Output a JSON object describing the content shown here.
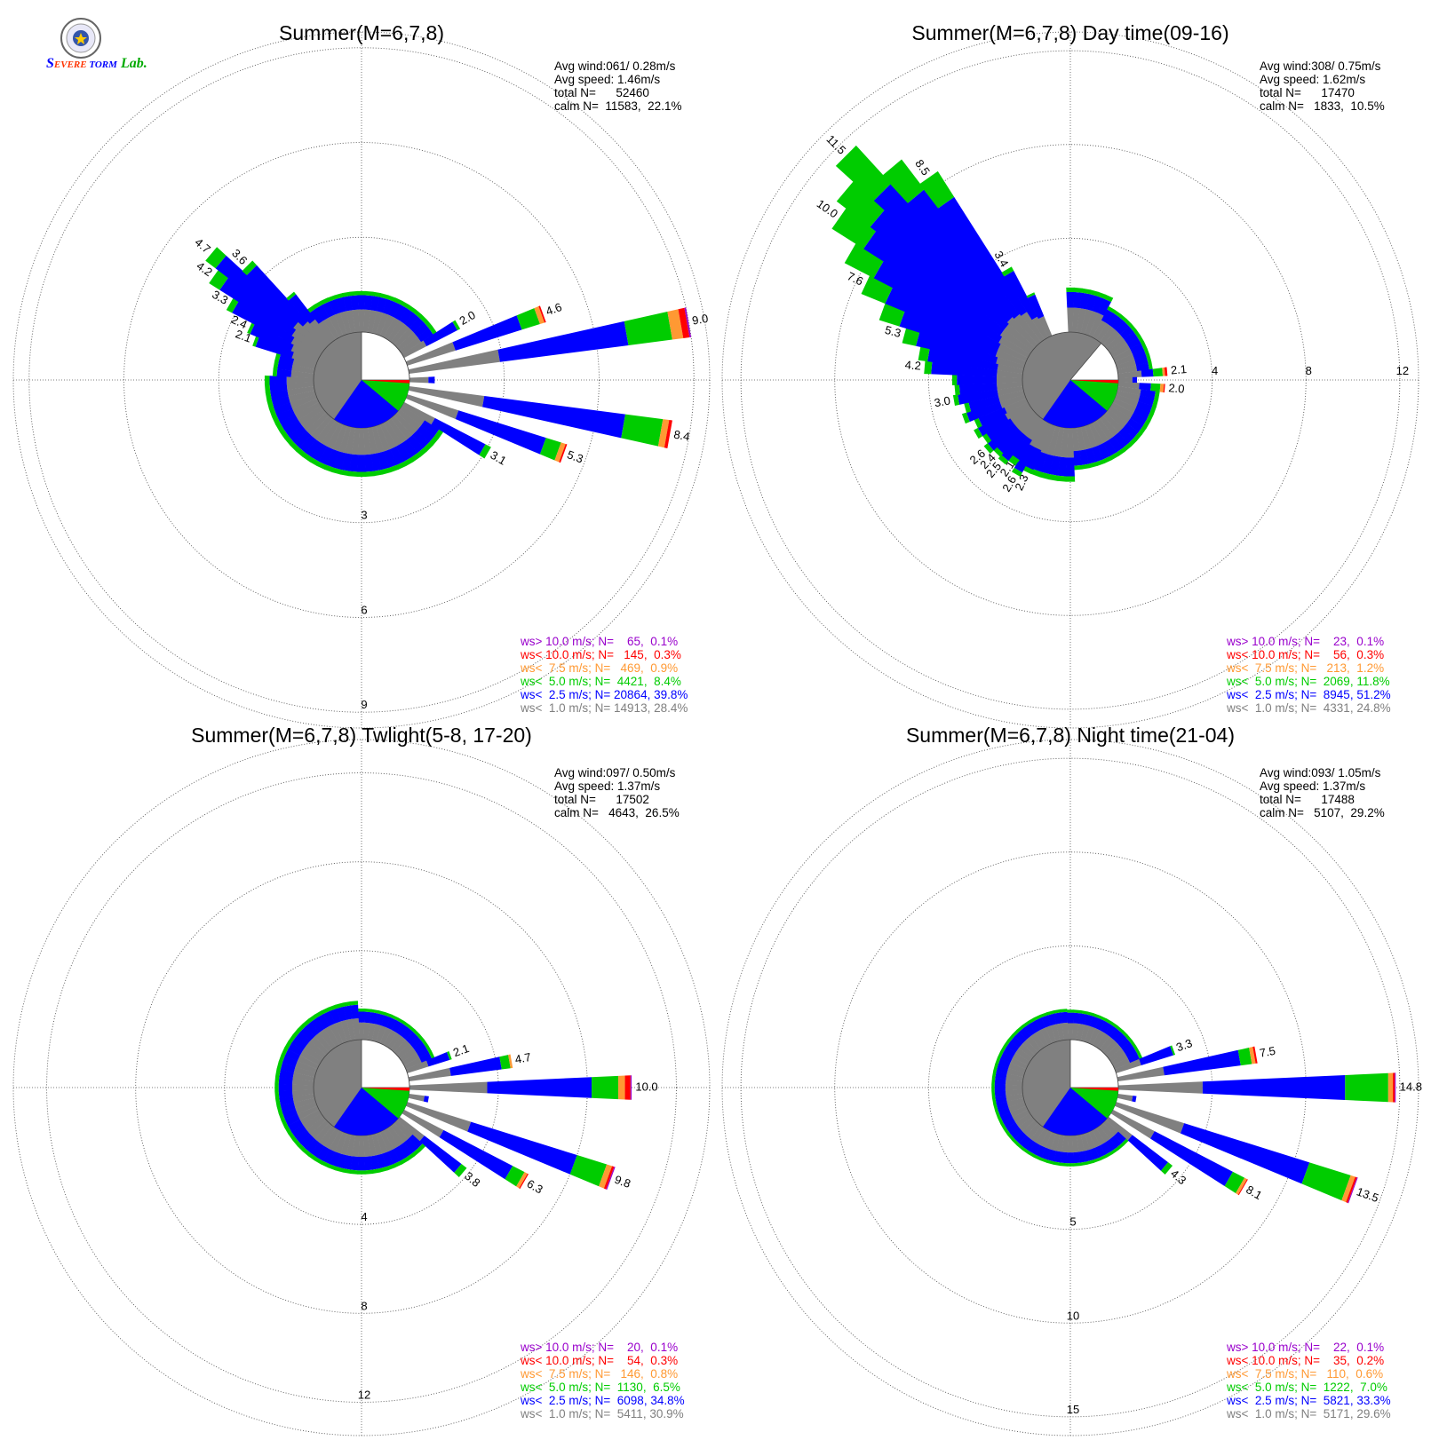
{
  "logo": {
    "text": "SEVERE STORM Lab."
  },
  "colors": {
    "calm": "#808080",
    "b1": "#808080",
    "b2": "#0000ff",
    "b3": "#00cc00",
    "b4": "#ff9933",
    "b5": "#ff0000",
    "b6": "#9900cc",
    "light_sector": "#ffffff"
  },
  "legend_colors": [
    "#9900cc",
    "#ff0000",
    "#ff9933",
    "#00cc00",
    "#0000ff",
    "#808080"
  ],
  "chart_data": [
    {
      "type": "windrose",
      "title": "Summer(M=6,7,8)",
      "stats": [
        "Avg wind:061/ 0.28m/s",
        "Avg speed: 1.46m/s",
        "total N=      52460",
        "calm N=  11583,  22.1%"
      ],
      "rings": [
        3,
        6,
        9
      ],
      "tick_labels": [
        "3",
        "6",
        "9"
      ],
      "tick_placement": "south",
      "max": 9.5,
      "calm_fraction": 0.221,
      "calm_sector_deg": [
        0,
        90
      ],
      "legend": [
        "ws> 10.0 m/s; N=    65,  0.1%",
        "ws< 10.0 m/s; N=   145,  0.3%",
        "ws<  7.5 m/s; N=   469,  0.9%",
        "ws<  5.0 m/s; N=  4421,  8.4%",
        "ws<  2.5 m/s; N= 20864, 39.8%",
        "ws<  1.0 m/s; N= 14913, 28.4%"
      ],
      "directions_deg": [
        60,
        70,
        80,
        90,
        100,
        110,
        120
      ],
      "bars_pct": [
        [
          2.0,
          0.8,
          1.1,
          0.1,
          0,
          0,
          0
        ],
        [
          4.6,
          1.6,
          2.2,
          0.6,
          0.15,
          0.05,
          0
        ],
        [
          9.0,
          2.9,
          4.1,
          1.4,
          0.35,
          0.2,
          0.05
        ],
        [
          0.8,
          0.6,
          0.2,
          0,
          0,
          0,
          0
        ],
        [
          8.4,
          2.4,
          4.5,
          1.2,
          0.2,
          0.1,
          0
        ],
        [
          5.3,
          1.7,
          2.9,
          0.5,
          0.15,
          0.05,
          0
        ],
        [
          3.1,
          1.1,
          1.8,
          0.2,
          0,
          0,
          0
        ]
      ],
      "bar_labels": [
        "2.0",
        "4.6",
        "9.0",
        "",
        "8.4",
        "5.3",
        "3.1"
      ],
      "other_bars": [
        {
          "from": 0,
          "to": 55,
          "step": 5,
          "value": 1.3
        },
        {
          "from": 125,
          "to": 270,
          "step": 5,
          "value": 1.55
        },
        {
          "from": 275,
          "to": 355,
          "step": 5,
          "value": 1.3
        }
      ],
      "extra_dirs_deg": [
        290,
        295,
        300,
        305,
        310,
        315,
        320
      ],
      "extra_pct": [
        [
          2.1,
          0.8,
          1.2,
          0.1,
          0,
          0,
          0
        ],
        [
          2.4,
          0.9,
          1.4,
          0.1,
          0,
          0,
          0
        ],
        [
          3.3,
          1.0,
          2.1,
          0.2,
          0,
          0,
          0
        ],
        [
          4.2,
          1.1,
          2.7,
          0.4,
          0,
          0,
          0
        ],
        [
          4.7,
          1.2,
          3.1,
          0.4,
          0,
          0,
          0
        ],
        [
          3.6,
          1.0,
          2.4,
          0.2,
          0,
          0,
          0
        ],
        [
          2.0,
          0.9,
          1.0,
          0.1,
          0,
          0,
          0
        ]
      ],
      "extra_labels": [
        "2.1",
        "2.4",
        "3.3",
        "4.2",
        "4.7",
        "3.6",
        ""
      ]
    },
    {
      "type": "windrose",
      "title": "Summer(M=6,7,8) Day time(09-16)",
      "stats": [
        "Avg wind:308/ 0.75m/s",
        "Avg speed: 1.62m/s",
        "total N=      17470",
        "calm N=   1833,  10.5%"
      ],
      "rings": [
        4,
        8,
        12
      ],
      "tick_labels": [
        "4",
        "8",
        "12"
      ],
      "tick_placement": "east",
      "max": 12.8,
      "calm_fraction": 0.105,
      "calm_sector_deg": [
        40,
        90
      ],
      "legend": [
        "ws> 10.0 m/s; N=    23,  0.1%",
        "ws< 10.0 m/s; N=    56,  0.3%",
        "ws<  7.5 m/s; N=   213,  1.2%",
        "ws<  5.0 m/s; N=  2069, 11.8%",
        "ws<  2.5 m/s; N=  8945, 51.2%",
        "ws<  1.0 m/s; N=  4331, 24.8%"
      ],
      "directions_deg": [
        85,
        90,
        95
      ],
      "bars_pct": [
        [
          2.1,
          1.0,
          0.5,
          0.4,
          0.1,
          0.1,
          0
        ],
        [
          0.8,
          0.6,
          0.2,
          0,
          0,
          0,
          0
        ],
        [
          2.0,
          0.9,
          0.5,
          0.4,
          0.15,
          0.05,
          0
        ]
      ],
      "bar_labels": [
        "2.1",
        "",
        "2.0"
      ],
      "other_bars": [
        {
          "from": 0,
          "to": 25,
          "step": 5,
          "value": 1.9
        },
        {
          "from": 30,
          "to": 80,
          "step": 5,
          "value": 1.5
        },
        {
          "from": 100,
          "to": 175,
          "step": 5,
          "value": 1.8
        },
        {
          "from": 180,
          "to": 240,
          "step": 5,
          "value": 2.3
        }
      ],
      "extra_dirs_deg": [
        205,
        210,
        215,
        220,
        225,
        230,
        235,
        240,
        245,
        250,
        255,
        260,
        265,
        270,
        275,
        280,
        285,
        290,
        295,
        300,
        305,
        310,
        315,
        320,
        325,
        330,
        335
      ],
      "extra_pct": [
        [
          2.3,
          1.2,
          0.9,
          0.2,
          0,
          0,
          0
        ],
        [
          2.6,
          1.2,
          1.2,
          0.2,
          0,
          0,
          0
        ],
        [
          2.1,
          1.0,
          1.0,
          0.1,
          0,
          0,
          0
        ],
        [
          2.5,
          1.0,
          1.3,
          0.2,
          0,
          0,
          0
        ],
        [
          2.4,
          1.0,
          1.2,
          0.2,
          0,
          0,
          0
        ],
        [
          2.6,
          1.0,
          1.4,
          0.2,
          0,
          0,
          0
        ],
        [
          2.4,
          1.0,
          1.2,
          0.2,
          0,
          0,
          0
        ],
        [
          2.6,
          1.1,
          1.3,
          0.2,
          0,
          0,
          0
        ],
        [
          2.4,
          1.0,
          1.2,
          0.2,
          0,
          0,
          0
        ],
        [
          2.8,
          1.1,
          1.5,
          0.2,
          0,
          0,
          0
        ],
        [
          2.6,
          1.1,
          1.3,
          0.2,
          0,
          0,
          0
        ],
        [
          3.0,
          1.1,
          1.7,
          0.2,
          0,
          0,
          0
        ],
        [
          2.9,
          1.1,
          1.6,
          0.2,
          0,
          0,
          0
        ],
        [
          3.0,
          1.1,
          1.7,
          0.2,
          0,
          0,
          0
        ],
        [
          4.2,
          1.1,
          2.8,
          0.3,
          0,
          0,
          0
        ],
        [
          4.5,
          1.1,
          3.0,
          0.4,
          0,
          0,
          0
        ],
        [
          5.3,
          1.2,
          3.5,
          0.6,
          0,
          0,
          0
        ],
        [
          6.5,
          1.3,
          4.3,
          0.9,
          0,
          0,
          0
        ],
        [
          7.6,
          1.3,
          5.2,
          1.1,
          0,
          0,
          0
        ],
        [
          8.8,
          1.4,
          6.0,
          1.4,
          0,
          0,
          0
        ],
        [
          10.0,
          1.5,
          6.9,
          1.6,
          0,
          0,
          0
        ],
        [
          10.5,
          1.5,
          7.2,
          1.8,
          0,
          0,
          0
        ],
        [
          11.5,
          1.6,
          7.7,
          2.2,
          0,
          0,
          0
        ],
        [
          9.8,
          1.5,
          6.7,
          1.6,
          0,
          0,
          0
        ],
        [
          8.5,
          1.4,
          5.8,
          1.3,
          0,
          0,
          0
        ],
        [
          3.4,
          1.0,
          2.2,
          0.2,
          0,
          0,
          0
        ],
        [
          2.0,
          0.9,
          1.0,
          0.1,
          0,
          0,
          0
        ]
      ],
      "extra_labels": [
        "2.3",
        "2.6",
        "2.1",
        "2.5",
        "2.4",
        "2.6",
        "",
        "",
        "",
        "",
        "",
        "3.0",
        "",
        "",
        "4.2",
        "",
        "5.3",
        "",
        "7.6",
        "",
        "10.0",
        "",
        "11.5",
        "",
        "8.5",
        "3.4",
        ""
      ]
    },
    {
      "type": "windrose",
      "title": "Summer(M=6,7,8) Twlight(5-8, 17-20)",
      "stats": [
        "Avg wind:097/ 0.50m/s",
        "Avg speed: 1.37m/s",
        "total N=      17502",
        "calm N=   4643,  26.5%"
      ],
      "rings": [
        4,
        8,
        12
      ],
      "tick_labels": [
        "4",
        "8",
        "12"
      ],
      "tick_placement": "south",
      "max": 13.5,
      "calm_fraction": 0.265,
      "calm_sector_deg": [
        0,
        90
      ],
      "legend": [
        "ws> 10.0 m/s; N=    20,  0.1%",
        "ws< 10.0 m/s; N=    54,  0.3%",
        "ws<  7.5 m/s; N=   146,  0.8%",
        "ws<  5.0 m/s; N=  1130,  6.5%",
        "ws<  2.5 m/s; N=  6098, 34.8%",
        "ws<  1.0 m/s; N=  5411, 30.9%"
      ],
      "directions_deg": [
        70,
        80,
        90,
        100,
        110,
        120,
        130
      ],
      "bars_pct": [
        [
          2.1,
          1.0,
          1.0,
          0.1,
          0,
          0,
          0
        ],
        [
          4.7,
          1.9,
          2.3,
          0.4,
          0.1,
          0,
          0
        ],
        [
          10.0,
          3.5,
          4.7,
          1.2,
          0.3,
          0.25,
          0.05
        ],
        [
          0.9,
          0.7,
          0.2,
          0,
          0,
          0,
          0
        ],
        [
          9.8,
          3.0,
          5.0,
          1.4,
          0.25,
          0.1,
          0.05
        ],
        [
          6.3,
          2.0,
          3.5,
          0.6,
          0.15,
          0.05,
          0
        ],
        [
          3.8,
          1.4,
          2.1,
          0.3,
          0,
          0,
          0
        ]
      ],
      "bar_labels": [
        "2.1",
        "4.7",
        "10.0",
        "",
        "9.8",
        "6.3",
        "3.8"
      ],
      "other_bars": [
        {
          "from": 0,
          "to": 65,
          "step": 5,
          "value": 1.4
        },
        {
          "from": 135,
          "to": 355,
          "step": 5,
          "value": 1.75
        }
      ],
      "extra_dirs_deg": [],
      "extra_pct": [],
      "extra_labels": []
    },
    {
      "type": "windrose",
      "title": "Summer(M=6,7,8) Night time(21-04)",
      "stats": [
        "Avg wind:093/ 1.05m/s",
        "Avg speed: 1.37m/s",
        "total N=      17488",
        "calm N=   5107,  29.2%"
      ],
      "rings": [
        5,
        10,
        15
      ],
      "tick_labels": [
        "5",
        "10",
        "15"
      ],
      "tick_placement": "south",
      "max": 16.0,
      "calm_fraction": 0.292,
      "calm_sector_deg": [
        0,
        90
      ],
      "legend": [
        "ws> 10.0 m/s; N=    22,  0.1%",
        "ws< 10.0 m/s; N=    35,  0.2%",
        "ws<  7.5 m/s; N=   110,  0.6%",
        "ws<  5.0 m/s; N=  1222,  7.0%",
        "ws<  2.5 m/s; N=  5821, 33.3%",
        "ws<  1.0 m/s; N=  5171, 29.6%"
      ],
      "directions_deg": [
        70,
        80,
        90,
        100,
        110,
        120,
        130
      ],
      "bars_pct": [
        [
          3.3,
          1.4,
          1.8,
          0.1,
          0,
          0,
          0
        ],
        [
          7.5,
          2.5,
          4.1,
          0.6,
          0.2,
          0.1,
          0
        ],
        [
          14.8,
          4.5,
          7.6,
          2.3,
          0.25,
          0.1,
          0.05
        ],
        [
          1.0,
          0.8,
          0.2,
          0,
          0,
          0,
          0
        ],
        [
          13.5,
          3.8,
          7.0,
          2.3,
          0.25,
          0.1,
          0.05
        ],
        [
          8.1,
          2.5,
          4.7,
          0.7,
          0.15,
          0.05,
          0
        ],
        [
          4.3,
          1.6,
          2.4,
          0.3,
          0,
          0,
          0
        ]
      ],
      "bar_labels": [
        "3.3",
        "7.5",
        "14.8",
        "",
        "13.5",
        "8.1",
        "4.3"
      ],
      "other_bars": [
        {
          "from": 0,
          "to": 65,
          "step": 5,
          "value": 1.6
        },
        {
          "from": 135,
          "to": 355,
          "step": 5,
          "value": 1.65
        }
      ],
      "extra_dirs_deg": [],
      "extra_pct": [],
      "extra_labels": []
    }
  ]
}
